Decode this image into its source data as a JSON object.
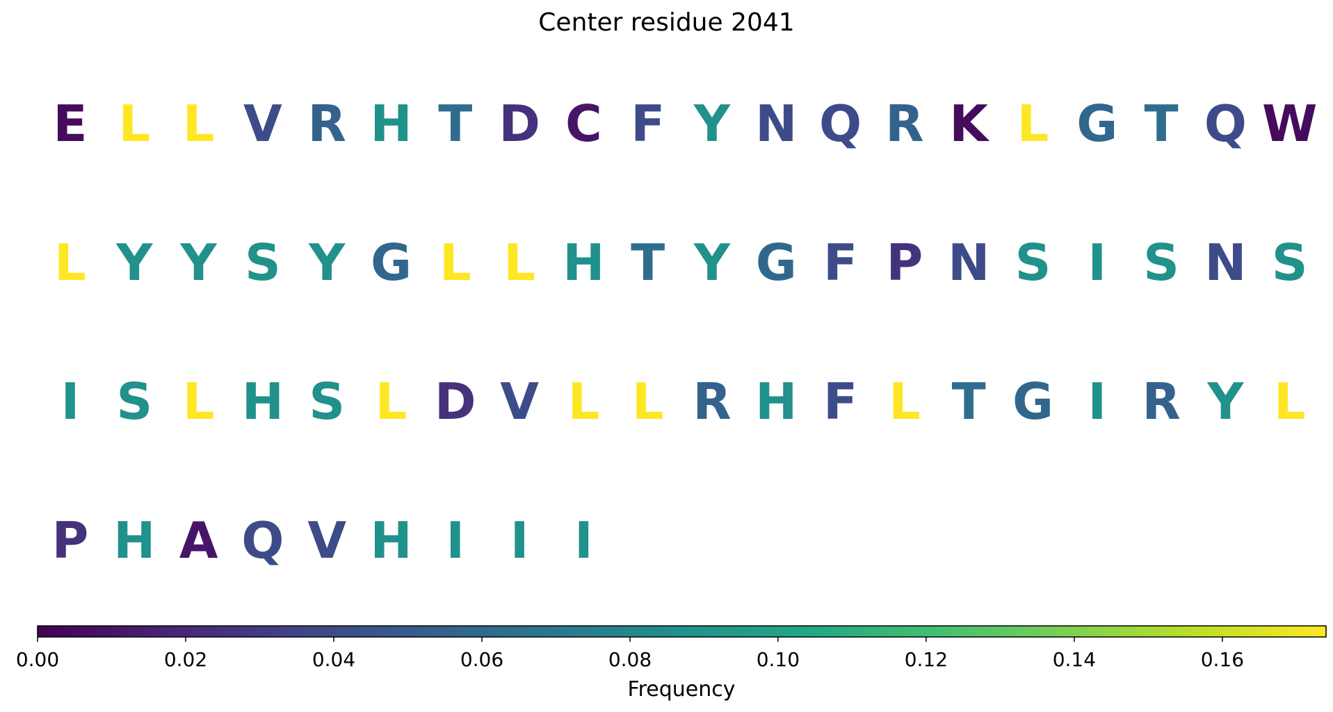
{
  "title": "Center residue 2041",
  "chart_data": {
    "type": "table",
    "title": "Center residue 2041",
    "colormap": "viridis",
    "colorbar": {
      "label": "Frequency",
      "range": [
        0,
        0.174
      ],
      "ticks": [
        "0.00",
        "0.02",
        "0.04",
        "0.06",
        "0.08",
        "0.10",
        "0.12",
        "0.14",
        "0.16"
      ],
      "tick_values": [
        0.0,
        0.02,
        0.04,
        0.06,
        0.08,
        0.1,
        0.12,
        0.14,
        0.16
      ]
    },
    "rows": [
      [
        {
          "residue": "E",
          "frequency": 0.005
        },
        {
          "residue": "L",
          "frequency": 0.174
        },
        {
          "residue": "L",
          "frequency": 0.174
        },
        {
          "residue": "V",
          "frequency": 0.04
        },
        {
          "residue": "R",
          "frequency": 0.055
        },
        {
          "residue": "H",
          "frequency": 0.087
        },
        {
          "residue": "T",
          "frequency": 0.062
        },
        {
          "residue": "D",
          "frequency": 0.025
        },
        {
          "residue": "C",
          "frequency": 0.01
        },
        {
          "residue": "F",
          "frequency": 0.04
        },
        {
          "residue": "Y",
          "frequency": 0.087
        },
        {
          "residue": "N",
          "frequency": 0.04
        },
        {
          "residue": "Q",
          "frequency": 0.04
        },
        {
          "residue": "R",
          "frequency": 0.055
        },
        {
          "residue": "K",
          "frequency": 0.005
        },
        {
          "residue": "L",
          "frequency": 0.174
        },
        {
          "residue": "G",
          "frequency": 0.058
        },
        {
          "residue": "T",
          "frequency": 0.062
        },
        {
          "residue": "Q",
          "frequency": 0.04
        },
        {
          "residue": "W",
          "frequency": 0.005
        }
      ],
      [
        {
          "residue": "L",
          "frequency": 0.174
        },
        {
          "residue": "Y",
          "frequency": 0.087
        },
        {
          "residue": "Y",
          "frequency": 0.087
        },
        {
          "residue": "S",
          "frequency": 0.087
        },
        {
          "residue": "Y",
          "frequency": 0.087
        },
        {
          "residue": "G",
          "frequency": 0.058
        },
        {
          "residue": "L",
          "frequency": 0.174
        },
        {
          "residue": "L",
          "frequency": 0.174
        },
        {
          "residue": "H",
          "frequency": 0.087
        },
        {
          "residue": "T",
          "frequency": 0.062
        },
        {
          "residue": "Y",
          "frequency": 0.087
        },
        {
          "residue": "G",
          "frequency": 0.058
        },
        {
          "residue": "F",
          "frequency": 0.04
        },
        {
          "residue": "P",
          "frequency": 0.025
        },
        {
          "residue": "N",
          "frequency": 0.04
        },
        {
          "residue": "S",
          "frequency": 0.087
        },
        {
          "residue": "I",
          "frequency": 0.087
        },
        {
          "residue": "S",
          "frequency": 0.087
        },
        {
          "residue": "N",
          "frequency": 0.04
        },
        {
          "residue": "S",
          "frequency": 0.087
        }
      ],
      [
        {
          "residue": "I",
          "frequency": 0.087
        },
        {
          "residue": "S",
          "frequency": 0.087
        },
        {
          "residue": "L",
          "frequency": 0.174
        },
        {
          "residue": "H",
          "frequency": 0.087
        },
        {
          "residue": "S",
          "frequency": 0.087
        },
        {
          "residue": "L",
          "frequency": 0.174
        },
        {
          "residue": "D",
          "frequency": 0.025
        },
        {
          "residue": "V",
          "frequency": 0.04
        },
        {
          "residue": "L",
          "frequency": 0.174
        },
        {
          "residue": "L",
          "frequency": 0.174
        },
        {
          "residue": "R",
          "frequency": 0.055
        },
        {
          "residue": "H",
          "frequency": 0.087
        },
        {
          "residue": "F",
          "frequency": 0.04
        },
        {
          "residue": "L",
          "frequency": 0.174
        },
        {
          "residue": "T",
          "frequency": 0.062
        },
        {
          "residue": "G",
          "frequency": 0.058
        },
        {
          "residue": "I",
          "frequency": 0.087
        },
        {
          "residue": "R",
          "frequency": 0.055
        },
        {
          "residue": "Y",
          "frequency": 0.087
        },
        {
          "residue": "L",
          "frequency": 0.174
        }
      ],
      [
        {
          "residue": "P",
          "frequency": 0.025
        },
        {
          "residue": "H",
          "frequency": 0.087
        },
        {
          "residue": "A",
          "frequency": 0.01
        },
        {
          "residue": "Q",
          "frequency": 0.04
        },
        {
          "residue": "V",
          "frequency": 0.04
        },
        {
          "residue": "H",
          "frequency": 0.087
        },
        {
          "residue": "I",
          "frequency": 0.087
        },
        {
          "residue": "I",
          "frequency": 0.087
        },
        {
          "residue": "I",
          "frequency": 0.087
        }
      ]
    ]
  }
}
